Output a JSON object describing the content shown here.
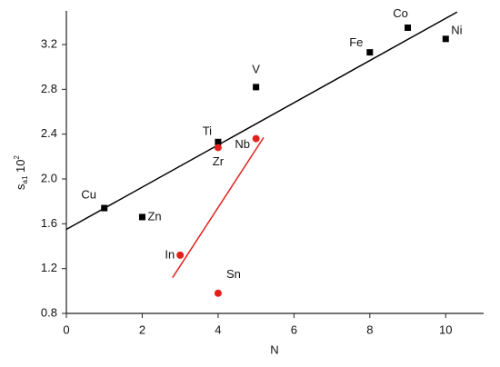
{
  "chart_data": {
    "type": "scatter",
    "xlabel": "N",
    "ylabel": {
      "base": "s",
      "sub": "a1",
      "mid": " 10",
      "sup": "2"
    },
    "xlim": [
      0,
      11
    ],
    "ylim": [
      0.8,
      3.5
    ],
    "xticks": [
      0,
      2,
      4,
      6,
      8,
      10
    ],
    "yticks": [
      0.8,
      1.2,
      1.6,
      {
        "value": 2.0,
        "label": "2.0"
      },
      2.4,
      2.8,
      3.2
    ],
    "series": [
      {
        "color": "#000000",
        "marker": "square",
        "x": [
          1,
          2,
          4,
          5,
          8,
          9,
          10
        ],
        "values": [
          1.74,
          1.66,
          2.33,
          2.82,
          3.13,
          3.35,
          3.25
        ],
        "labels": [
          "Cu",
          "Zn",
          "Ti",
          "V",
          "Fe",
          "Co",
          "Ni"
        ]
      },
      {
        "color": "#e3211c",
        "marker": "circle",
        "x": [
          4,
          5,
          3,
          4
        ],
        "values": [
          2.28,
          2.36,
          1.32,
          0.98
        ],
        "labels": [
          "Zr",
          "Nb",
          "In",
          "Sn"
        ]
      }
    ],
    "lines": [
      {
        "color": "#000000",
        "x": [
          0,
          10.3
        ],
        "values": [
          1.55,
          3.49
        ]
      },
      {
        "color": "#e3211c",
        "x": [
          2.8,
          5.2
        ],
        "values": [
          1.12,
          2.37
        ]
      }
    ]
  }
}
